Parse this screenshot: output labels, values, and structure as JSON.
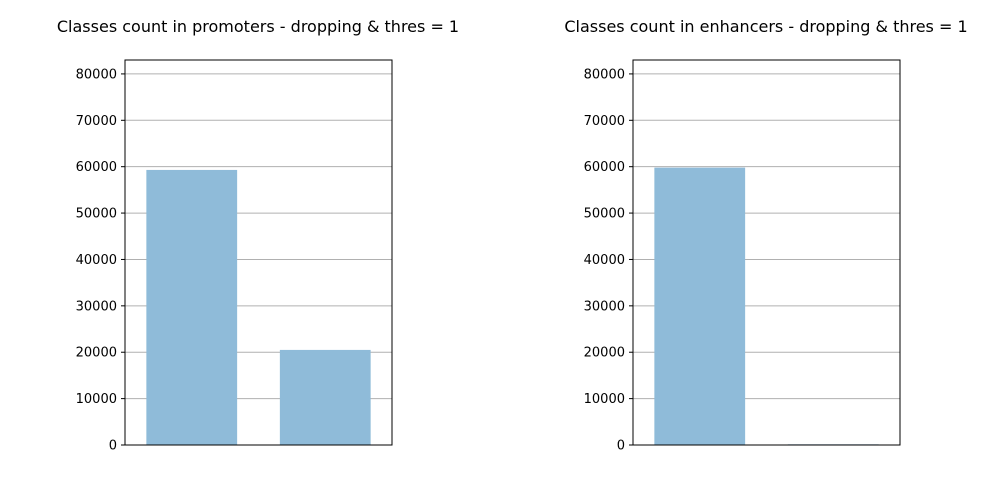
{
  "chart_data": [
    {
      "type": "bar",
      "title": "Classes count in promoters - dropping & thres = 1",
      "xlabel": "",
      "ylabel": "",
      "categories": [
        "",
        ""
      ],
      "values": [
        59300,
        20500
      ],
      "ylim": [
        0,
        83000
      ],
      "yticks": [
        0,
        10000,
        20000,
        30000,
        40000,
        50000,
        60000,
        70000,
        80000
      ],
      "ytick_labels": [
        "0",
        "10000",
        "20000",
        "30000",
        "40000",
        "50000",
        "60000",
        "70000",
        "80000"
      ],
      "grid": "y",
      "bar_color": "#8fbbd9"
    },
    {
      "type": "bar",
      "title": "Classes count in enhancers - dropping & thres = 1",
      "xlabel": "",
      "ylabel": "",
      "categories": [
        "",
        ""
      ],
      "values": [
        59800,
        150
      ],
      "ylim": [
        0,
        83000
      ],
      "yticks": [
        0,
        10000,
        20000,
        30000,
        40000,
        50000,
        60000,
        70000,
        80000
      ],
      "ytick_labels": [
        "0",
        "10000",
        "20000",
        "30000",
        "40000",
        "50000",
        "60000",
        "70000",
        "80000"
      ],
      "grid": "y",
      "bar_color": "#8fbbd9"
    }
  ]
}
